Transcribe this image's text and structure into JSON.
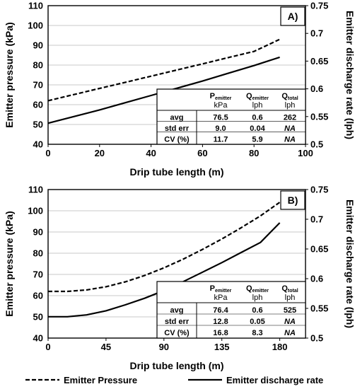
{
  "legend": {
    "pressure_label": "Emitter Pressure",
    "discharge_label": "Emitter discharge rate"
  },
  "chart_data": [
    {
      "type": "line",
      "panel_label": "A)",
      "xlabel": "Drip tube length (m)",
      "ylabel_left": "Emitter pressure (kPa)",
      "ylabel_right": "Emitter discharge rate (lph)",
      "xlim": [
        0,
        100
      ],
      "x_ticks": [
        "0",
        "20",
        "40",
        "60",
        "80",
        "100"
      ],
      "ylim_left": [
        40,
        110
      ],
      "y_left_ticks": [
        "40",
        "50",
        "60",
        "70",
        "80",
        "90",
        "100",
        "110"
      ],
      "ylim_right": [
        0.5,
        0.75
      ],
      "y_right_ticks": [
        "0.5",
        "0.55",
        "0.6",
        "0.65",
        "0.7",
        "0.75"
      ],
      "grid": "horizontal",
      "series": [
        {
          "name": "Emitter Pressure",
          "axis": "left",
          "style": "dashed",
          "x": [
            0,
            10,
            20,
            30,
            40,
            50,
            60,
            70,
            80,
            90
          ],
          "y": [
            62,
            65.1,
            68.2,
            71.3,
            74.4,
            77.5,
            80.6,
            83.8,
            86.9,
            93
          ]
        },
        {
          "name": "Emitter discharge rate",
          "axis": "right",
          "style": "solid",
          "x": [
            0,
            10,
            20,
            30,
            40,
            50,
            60,
            70,
            80,
            90
          ],
          "y": [
            0.538,
            0.55,
            0.562,
            0.575,
            0.588,
            0.601,
            0.614,
            0.628,
            0.642,
            0.657
          ]
        }
      ],
      "table": {
        "headers": [
          {
            "main": "P",
            "sub": "emitter",
            "unit": "kPa"
          },
          {
            "main": "Q",
            "sub": "emitter",
            "unit": "lph"
          },
          {
            "main": "Q",
            "sub": "total",
            "unit": "lph"
          }
        ],
        "rows": [
          {
            "label": "avg",
            "values": [
              "76.5",
              "0.6",
              "262"
            ]
          },
          {
            "label": "std err",
            "values": [
              "9.0",
              "0.04",
              "NA"
            ]
          },
          {
            "label": "CV (%)",
            "values": [
              "11.7",
              "5.9",
              "NA"
            ]
          }
        ]
      }
    },
    {
      "type": "line",
      "panel_label": "B)",
      "xlabel": "Drip tube length (m)",
      "ylabel_left": "Emitter pressure (kPa)",
      "ylabel_right": "Emitter discharge rate (lph)",
      "xlim": [
        0,
        200
      ],
      "x_ticks": [
        "0",
        "45",
        "90",
        "135",
        "180"
      ],
      "x_tick_values": [
        0,
        45,
        90,
        135,
        180
      ],
      "ylim_left": [
        40,
        110
      ],
      "y_left_ticks": [
        "40",
        "50",
        "60",
        "70",
        "80",
        "90",
        "100",
        "110"
      ],
      "ylim_right": [
        0.5,
        0.75
      ],
      "y_right_ticks": [
        "0.5",
        "0.55",
        "0.6",
        "0.65",
        "0.7",
        "0.75"
      ],
      "grid": "horizontal",
      "series": [
        {
          "name": "Emitter Pressure",
          "axis": "left",
          "style": "dashed",
          "x": [
            0,
            15,
            30,
            45,
            60,
            75,
            90,
            105,
            120,
            135,
            150,
            165,
            180
          ],
          "y": [
            62,
            62,
            62.7,
            64.2,
            66.5,
            69.5,
            73.1,
            77.2,
            81.8,
            86.7,
            92,
            97.6,
            104
          ]
        },
        {
          "name": "Emitter discharge rate",
          "axis": "right",
          "style": "solid",
          "x": [
            0,
            15,
            30,
            45,
            60,
            75,
            90,
            105,
            120,
            135,
            150,
            165,
            180
          ],
          "y": [
            0.536,
            0.536,
            0.539,
            0.546,
            0.556,
            0.567,
            0.58,
            0.595,
            0.611,
            0.627,
            0.644,
            0.661,
            0.694
          ]
        }
      ],
      "table": {
        "headers": [
          {
            "main": "P",
            "sub": "emitter",
            "unit": "kPa"
          },
          {
            "main": "Q",
            "sub": "emitter",
            "unit": "lph"
          },
          {
            "main": "Q",
            "sub": "total",
            "unit": "lph"
          }
        ],
        "rows": [
          {
            "label": "avg",
            "values": [
              "76.4",
              "0.6",
              "525"
            ]
          },
          {
            "label": "std err",
            "values": [
              "12.8",
              "0.05",
              "NA"
            ]
          },
          {
            "label": "CV (%)",
            "values": [
              "16.8",
              "8.3",
              "NA"
            ]
          }
        ]
      }
    }
  ]
}
